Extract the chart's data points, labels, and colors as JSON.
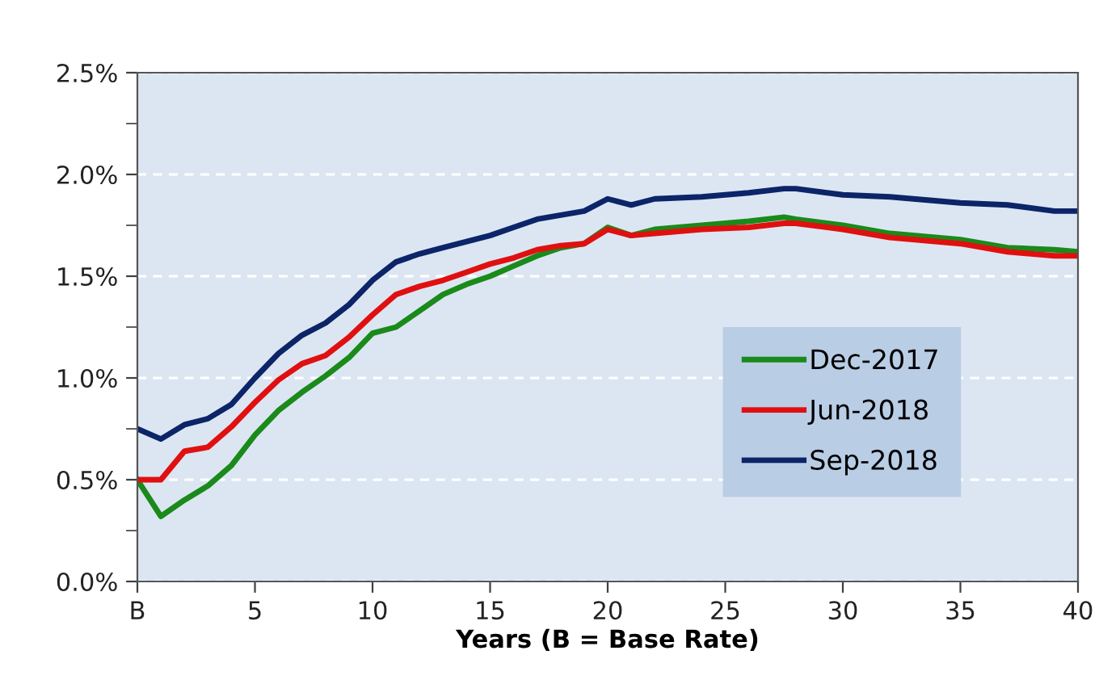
{
  "chart_data": {
    "type": "line",
    "xlabel": "Years (B = Base Rate)",
    "x": [
      0,
      1,
      2,
      3,
      4,
      5,
      6,
      7,
      8,
      9,
      10,
      11,
      12,
      13,
      14,
      15,
      16,
      17,
      18,
      19,
      20,
      21,
      22,
      24,
      26,
      27.5,
      28,
      30,
      32,
      35,
      37,
      39,
      40
    ],
    "series": [
      {
        "name": "Dec-2017",
        "color": "#1a8a1a",
        "values": [
          0.5,
          0.32,
          0.4,
          0.47,
          0.57,
          0.72,
          0.84,
          0.93,
          1.01,
          1.1,
          1.22,
          1.25,
          1.33,
          1.41,
          1.46,
          1.5,
          1.55,
          1.6,
          1.64,
          1.66,
          1.74,
          1.7,
          1.73,
          1.75,
          1.77,
          1.79,
          1.78,
          1.75,
          1.71,
          1.68,
          1.64,
          1.63,
          1.62
        ]
      },
      {
        "name": "Jun-2018",
        "color": "#e01010",
        "values": [
          0.5,
          0.5,
          0.64,
          0.66,
          0.76,
          0.88,
          0.99,
          1.07,
          1.11,
          1.2,
          1.31,
          1.41,
          1.45,
          1.48,
          1.52,
          1.56,
          1.59,
          1.63,
          1.65,
          1.66,
          1.73,
          1.7,
          1.71,
          1.73,
          1.74,
          1.76,
          1.76,
          1.73,
          1.69,
          1.66,
          1.62,
          1.6,
          1.6
        ]
      },
      {
        "name": "Sep-2018",
        "color": "#0c2468",
        "values": [
          0.75,
          0.7,
          0.77,
          0.8,
          0.87,
          1.0,
          1.12,
          1.21,
          1.27,
          1.36,
          1.48,
          1.57,
          1.61,
          1.64,
          1.67,
          1.7,
          1.74,
          1.78,
          1.8,
          1.82,
          1.88,
          1.85,
          1.88,
          1.89,
          1.91,
          1.93,
          1.93,
          1.9,
          1.89,
          1.86,
          1.85,
          1.82,
          1.82
        ]
      }
    ],
    "xlim": [
      0,
      40
    ],
    "xticks": [
      {
        "value": 0,
        "label": "B"
      },
      5,
      10,
      15,
      20,
      25,
      30,
      35,
      40
    ],
    "ylim": [
      0,
      2.5
    ],
    "yticks": [
      {
        "value": 0,
        "label": "0.0%"
      },
      {
        "value": 0.25,
        "label": null
      },
      {
        "value": 0.5,
        "label": "0.5%"
      },
      {
        "value": 0.75,
        "label": null
      },
      {
        "value": 1.0,
        "label": "1.0%"
      },
      {
        "value": 1.25,
        "label": null
      },
      {
        "value": 1.5,
        "label": "1.5%"
      },
      {
        "value": 1.75,
        "label": null
      },
      {
        "value": 2.0,
        "label": "2.0%"
      },
      {
        "value": 2.25,
        "label": null
      },
      {
        "value": 2.5,
        "label": "2.5%"
      }
    ],
    "grid": "y",
    "legend": "lower right",
    "marker": "none",
    "line_style": "solid"
  }
}
